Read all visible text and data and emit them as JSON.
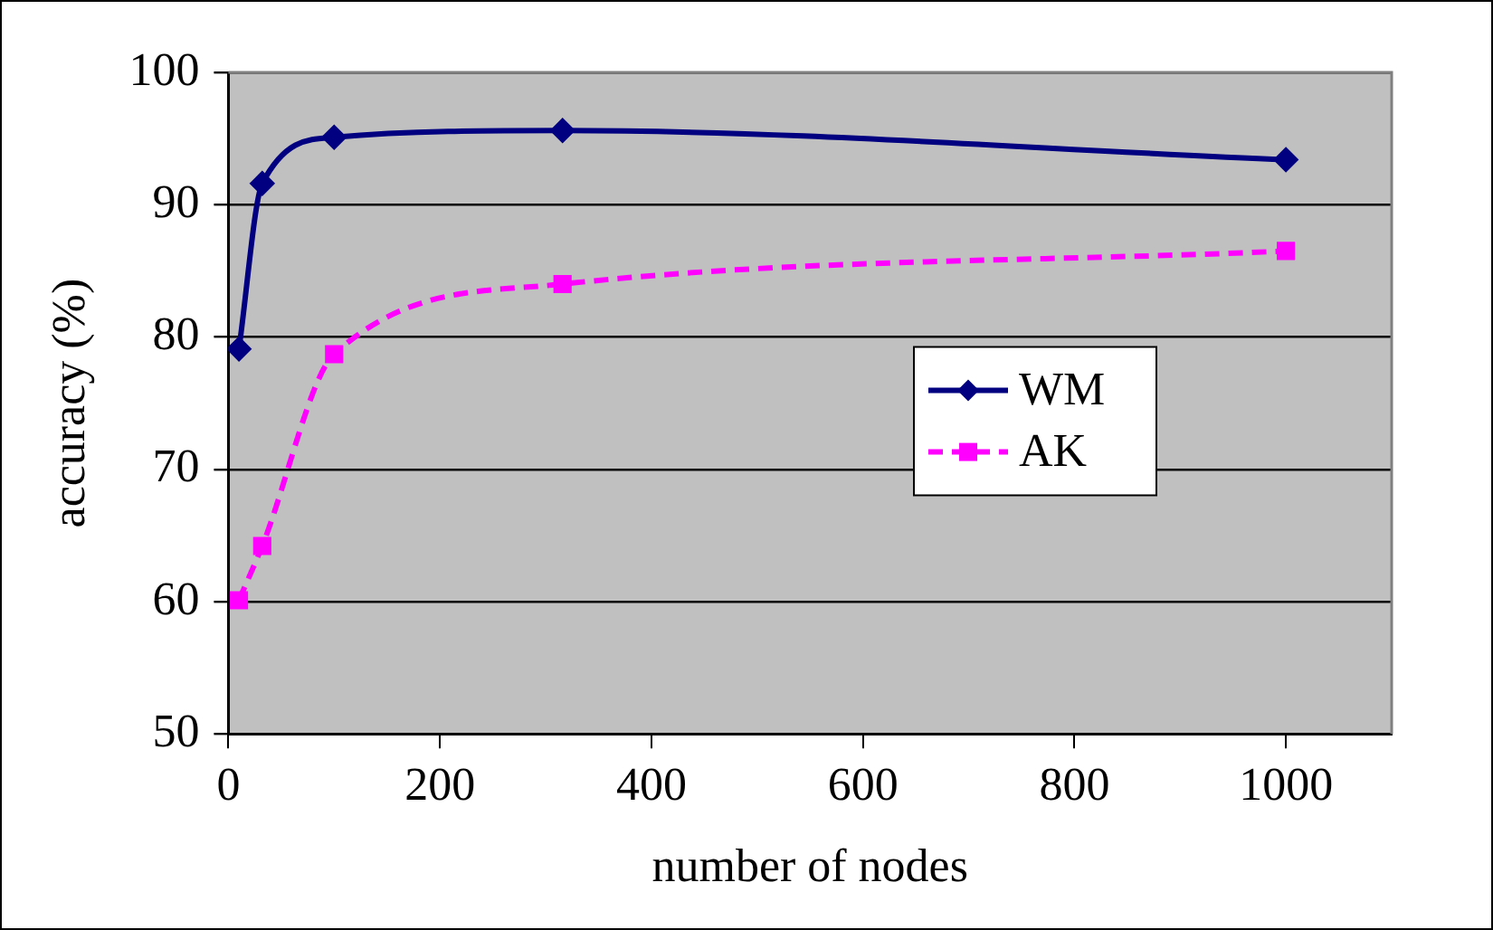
{
  "chart_data": {
    "type": "line",
    "xlabel": "number of nodes",
    "ylabel": "accuracy (%)",
    "xlim": [
      0,
      1100
    ],
    "xticks": [
      0,
      200,
      400,
      600,
      800,
      1000
    ],
    "ylim": [
      50,
      100
    ],
    "yticks": [
      50,
      60,
      70,
      80,
      90,
      100
    ],
    "grid": "y",
    "legend": "right",
    "series": [
      {
        "name": "WM",
        "color": "#000080",
        "marker": "diamond",
        "line_style": "solid",
        "x": [
          10,
          32,
          100,
          316,
          1000
        ],
        "values": [
          79.1,
          91.6,
          95.1,
          95.6,
          93.4
        ]
      },
      {
        "name": "AK",
        "color": "#ff00ff",
        "marker": "square",
        "line_style": "dashed",
        "x": [
          10,
          32,
          100,
          316,
          1000
        ],
        "values": [
          60.1,
          64.2,
          78.7,
          84.0,
          86.5
        ]
      }
    ]
  }
}
